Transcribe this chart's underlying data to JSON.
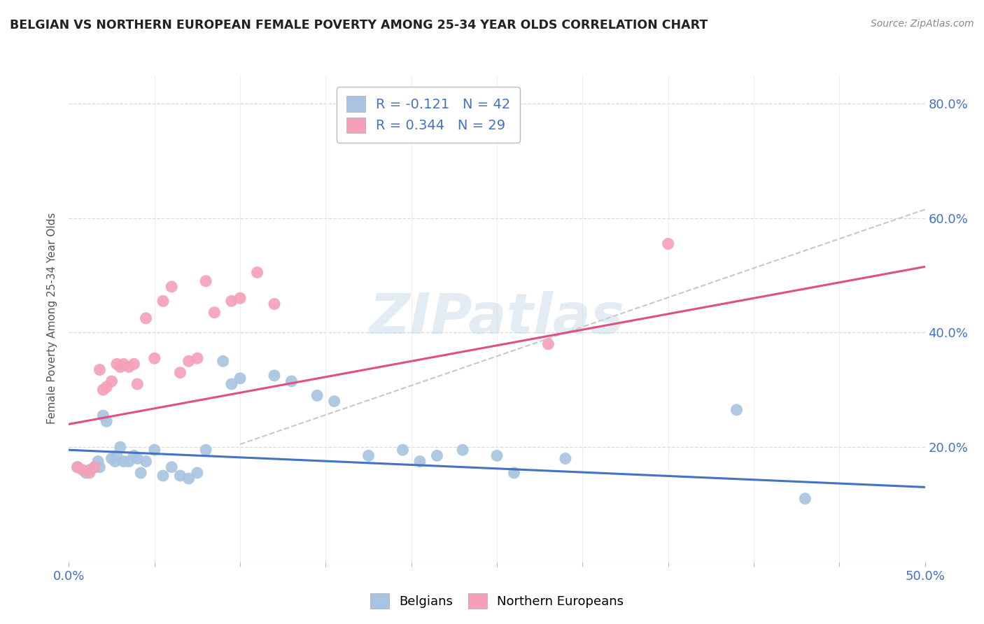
{
  "title": "BELGIAN VS NORTHERN EUROPEAN FEMALE POVERTY AMONG 25-34 YEAR OLDS CORRELATION CHART",
  "source": "Source: ZipAtlas.com",
  "ylabel": "Female Poverty Among 25-34 Year Olds",
  "xlim": [
    0.0,
    0.5
  ],
  "ylim": [
    0.0,
    0.85
  ],
  "xticks": [
    0.0,
    0.05,
    0.1,
    0.15,
    0.2,
    0.25,
    0.3,
    0.35,
    0.4,
    0.45,
    0.5
  ],
  "xticklabels": [
    "0.0%",
    "",
    "",
    "",
    "",
    "",
    "",
    "",
    "",
    "",
    "50.0%"
  ],
  "yticks": [
    0.0,
    0.2,
    0.4,
    0.6,
    0.8
  ],
  "yticklabels": [
    "",
    "20.0%",
    "40.0%",
    "60.0%",
    "80.0%"
  ],
  "legend_r_blue": "R = -0.121",
  "legend_n_blue": "N = 42",
  "legend_r_pink": "R = 0.344",
  "legend_n_pink": "N = 29",
  "blue_scatter_color": "#a8c4e0",
  "pink_scatter_color": "#f4a0b8",
  "blue_line_color": "#4472c4",
  "pink_line_color": "#e05080",
  "dashed_line_color": "#c8c8c8",
  "watermark": "ZIPatlas",
  "belgians_x": [
    0.005,
    0.01,
    0.012,
    0.015,
    0.017,
    0.018,
    0.02,
    0.022,
    0.025,
    0.027,
    0.028,
    0.03,
    0.032,
    0.035,
    0.038,
    0.04,
    0.042,
    0.045,
    0.05,
    0.055,
    0.06,
    0.065,
    0.07,
    0.075,
    0.08,
    0.09,
    0.095,
    0.1,
    0.12,
    0.13,
    0.145,
    0.155,
    0.175,
    0.195,
    0.205,
    0.215,
    0.23,
    0.25,
    0.26,
    0.29,
    0.39,
    0.43
  ],
  "belgians_y": [
    0.165,
    0.155,
    0.16,
    0.165,
    0.175,
    0.165,
    0.255,
    0.245,
    0.18,
    0.175,
    0.185,
    0.2,
    0.175,
    0.175,
    0.185,
    0.18,
    0.155,
    0.175,
    0.195,
    0.15,
    0.165,
    0.15,
    0.145,
    0.155,
    0.195,
    0.35,
    0.31,
    0.32,
    0.325,
    0.315,
    0.29,
    0.28,
    0.185,
    0.195,
    0.175,
    0.185,
    0.195,
    0.185,
    0.155,
    0.18,
    0.265,
    0.11
  ],
  "northern_x": [
    0.005,
    0.008,
    0.012,
    0.015,
    0.018,
    0.02,
    0.022,
    0.025,
    0.028,
    0.03,
    0.032,
    0.035,
    0.038,
    0.04,
    0.045,
    0.05,
    0.055,
    0.06,
    0.065,
    0.07,
    0.075,
    0.08,
    0.085,
    0.095,
    0.1,
    0.11,
    0.12,
    0.28,
    0.35
  ],
  "northern_y": [
    0.165,
    0.16,
    0.155,
    0.165,
    0.335,
    0.3,
    0.305,
    0.315,
    0.345,
    0.34,
    0.345,
    0.34,
    0.345,
    0.31,
    0.425,
    0.355,
    0.455,
    0.48,
    0.33,
    0.35,
    0.355,
    0.49,
    0.435,
    0.455,
    0.46,
    0.505,
    0.45,
    0.38,
    0.555
  ],
  "blue_trendline_x": [
    0.0,
    0.5
  ],
  "blue_trendline_y": [
    0.195,
    0.13
  ],
  "pink_trendline_x": [
    0.0,
    0.5
  ],
  "pink_trendline_y": [
    0.24,
    0.515
  ],
  "dashed_line_x": [
    0.1,
    0.5
  ],
  "dashed_line_y": [
    0.205,
    0.615
  ]
}
